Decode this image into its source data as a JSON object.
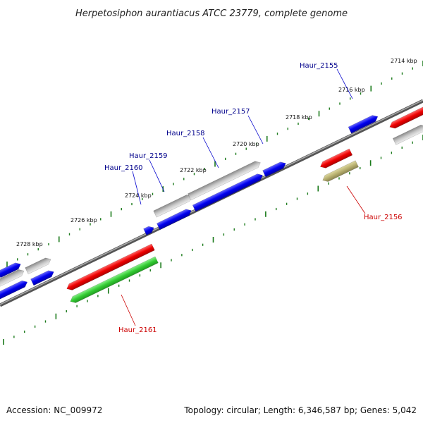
{
  "title": "Herpetosiphon aurantiacus ATCC 23779, complete genome",
  "footer": {
    "accession": "Accession: NC_009972",
    "summary": "Topology: circular; Length: 6,346,587 bp; Genes: 5,042"
  },
  "scale_labels": [
    "2714 kbp",
    "2716 kbp",
    "2718 kbp",
    "2720 kbp",
    "2722 kbp",
    "2724 kbp",
    "2726 kbp",
    "2728 kbp"
  ],
  "gene_labels": [
    {
      "name": "Haur_2155",
      "color": "#00008b"
    },
    {
      "name": "Haur_2157",
      "color": "#00008b"
    },
    {
      "name": "Haur_2158",
      "color": "#00008b"
    },
    {
      "name": "Haur_2159",
      "color": "#00008b"
    },
    {
      "name": "Haur_2160",
      "color": "#00008b"
    },
    {
      "name": "Haur_2156",
      "color": "#cc0000"
    },
    {
      "name": "Haur_2161",
      "color": "#cc0000"
    }
  ],
  "colors": {
    "backbone": "#777777",
    "forward_cds": "#0000ee",
    "forward_other": "#b0b0b0",
    "reverse_cds": "#ee0000",
    "reverse_rna": "#33cc33",
    "reverse_pseudo": "#b8b070",
    "tick": "#1a7a1a"
  }
}
